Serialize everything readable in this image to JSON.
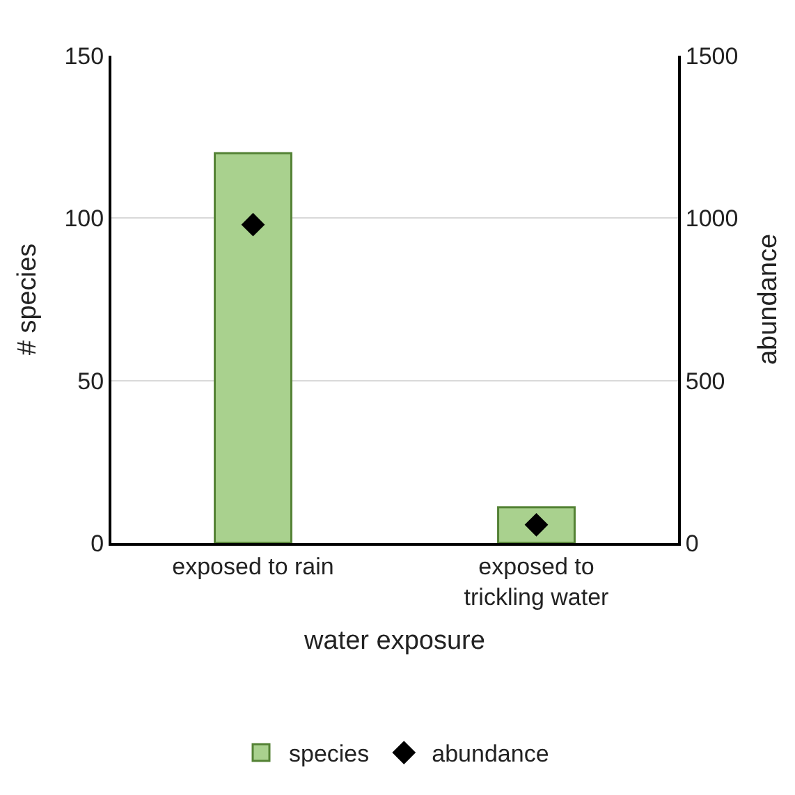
{
  "chart_data": {
    "type": "bar",
    "xlabel": "water exposure",
    "ylabel": "# species",
    "y2label": "abundance",
    "categories": [
      "exposed to rain",
      "exposed to trickling water"
    ],
    "series": [
      {
        "name": "species",
        "color": "#a9d18e",
        "values": [
          120,
          11
        ]
      },
      {
        "name": "abundance",
        "type": "scatter",
        "axis": "y2",
        "color": "#000000",
        "values": [
          980,
          56
        ]
      }
    ],
    "ylim": [
      0,
      150
    ],
    "yticks": [
      0,
      50,
      100,
      150
    ],
    "y2lim": [
      0,
      1500
    ],
    "y2ticks": [
      0,
      500,
      1000,
      1500
    ],
    "grid": "y",
    "legend": "bottom",
    "marker": "diamond"
  }
}
